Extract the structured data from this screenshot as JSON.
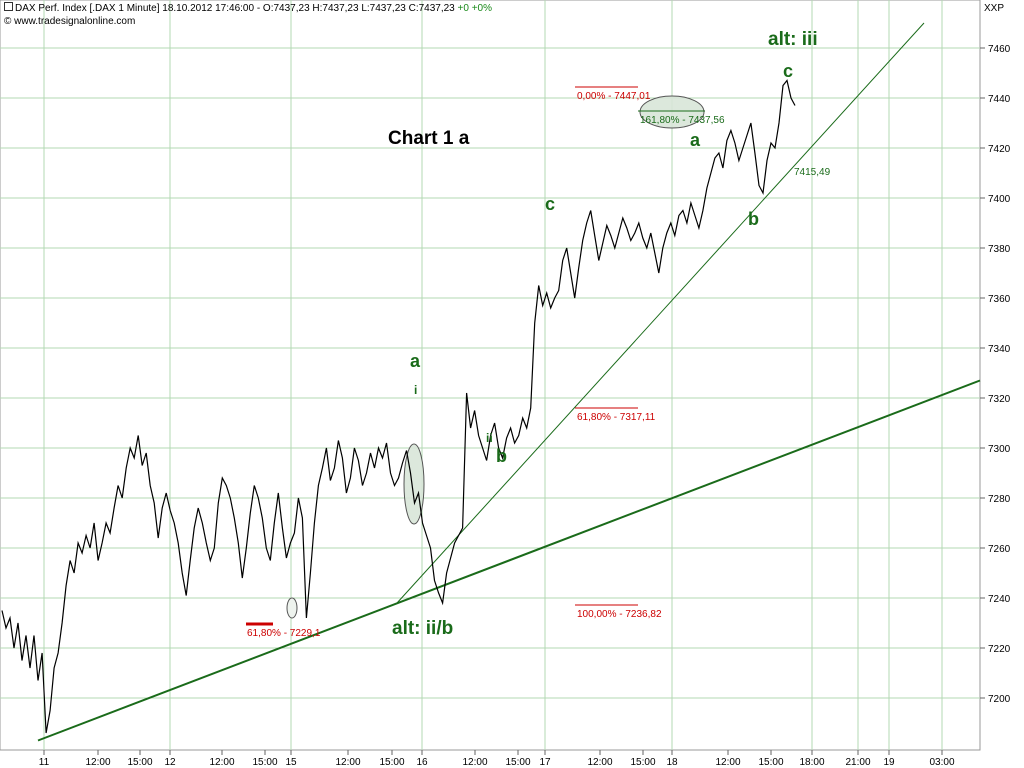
{
  "header": {
    "title": "DAX Perf. Index [.DAX  1 Minute] 18.10.2012 17:46:00 - O:7437,23 H:7437,23 L:7437,23 C:7437,23",
    "change": "+0 +0%",
    "copyright": "© www.tradesignalonline.com",
    "symbol": "XXP"
  },
  "colors": {
    "price": "#000000",
    "grid": "#b3d9b3",
    "wave_label": "#1a6b1a",
    "fib": "#cc0000",
    "fib_green": "#1a6b1a",
    "trendline": "#1a6b1a",
    "ellipse_fill": "#d8e6d8"
  },
  "chart_data": {
    "type": "line",
    "title": "Chart 1 a",
    "ylim": [
      7180,
      7470
    ],
    "y_ticks": [
      7200,
      7220,
      7240,
      7260,
      7280,
      7300,
      7320,
      7340,
      7360,
      7380,
      7400,
      7420,
      7440,
      7460
    ],
    "x_tick_labels": [
      "11",
      "12:00",
      "15:00",
      "12",
      "12:00",
      "15:00",
      "15",
      "12:00",
      "15:00",
      "16",
      "12:00",
      "15:00",
      "17",
      "12:00",
      "15:00",
      "18",
      "12:00",
      "15:00",
      "18:00",
      "21:00",
      "19",
      "03:00"
    ],
    "series": [
      {
        "values": [
          7235,
          7228,
          7232,
          7220,
          7230,
          7215,
          7225,
          7212,
          7225,
          7207,
          7218,
          7186,
          7195,
          7212,
          7218,
          7230,
          7245,
          7255,
          7250,
          7262,
          7258,
          7265,
          7260,
          7270,
          7255,
          7262,
          7270,
          7266,
          7276,
          7285,
          7280,
          7292,
          7300,
          7296,
          7305,
          7293,
          7298,
          7285,
          7278,
          7264,
          7276,
          7282,
          7275,
          7270,
          7262,
          7250,
          7241,
          7255,
          7268,
          7276,
          7270,
          7262,
          7255,
          7260,
          7278,
          7288,
          7285,
          7280,
          7272,
          7262,
          7248,
          7260,
          7274,
          7285,
          7280,
          7272,
          7260,
          7255,
          7270,
          7282,
          7268,
          7256,
          7262,
          7266,
          7280,
          7272,
          7232,
          7250,
          7270,
          7285,
          7292,
          7300,
          7287,
          7292,
          7303,
          7296,
          7282,
          7288,
          7300,
          7295,
          7285,
          7290,
          7298,
          7292,
          7300,
          7296,
          7302,
          7290,
          7285,
          7288,
          7294,
          7299,
          7290,
          7278,
          7282,
          7270,
          7265,
          7260,
          7247,
          7242,
          7238,
          7250,
          7256,
          7262,
          7265,
          7268,
          7322,
          7308,
          7315,
          7305,
          7300,
          7295,
          7305,
          7310,
          7300,
          7296,
          7304,
          7308,
          7302,
          7305,
          7312,
          7308,
          7316,
          7350,
          7365,
          7357,
          7362,
          7356,
          7360,
          7363,
          7375,
          7380,
          7370,
          7360,
          7372,
          7383,
          7390,
          7395,
          7385,
          7375,
          7382,
          7389,
          7385,
          7380,
          7386,
          7392,
          7388,
          7383,
          7386,
          7390,
          7384,
          7380,
          7386,
          7378,
          7370,
          7380,
          7386,
          7390,
          7385,
          7393,
          7395,
          7390,
          7398,
          7393,
          7388,
          7395,
          7404,
          7410,
          7416,
          7418,
          7412,
          7423,
          7427,
          7422,
          7415,
          7420,
          7425,
          7430,
          7418,
          7405,
          7402,
          7415,
          7422,
          7420,
          7430,
          7445,
          7447,
          7440,
          7437
        ]
      }
    ],
    "wave_labels": [
      {
        "text": "alt: iii",
        "big": true
      },
      {
        "text": "c"
      },
      {
        "text": "a"
      },
      {
        "text": "b"
      },
      {
        "text": "c"
      },
      {
        "text": "a"
      },
      {
        "text": "i",
        "small": true
      },
      {
        "text": "ii",
        "small": true
      },
      {
        "text": "b"
      },
      {
        "text": "alt: ii/b",
        "big": true
      }
    ],
    "fib_labels": [
      {
        "text": "0,00% - 7447,01"
      },
      {
        "text": "161,80% - 7437,56"
      },
      {
        "text": "7415,49"
      },
      {
        "text": "61,80% - 7317,11"
      },
      {
        "text": "100,00% - 7236,82"
      },
      {
        "text": "61,80% - 7229,1"
      }
    ]
  }
}
